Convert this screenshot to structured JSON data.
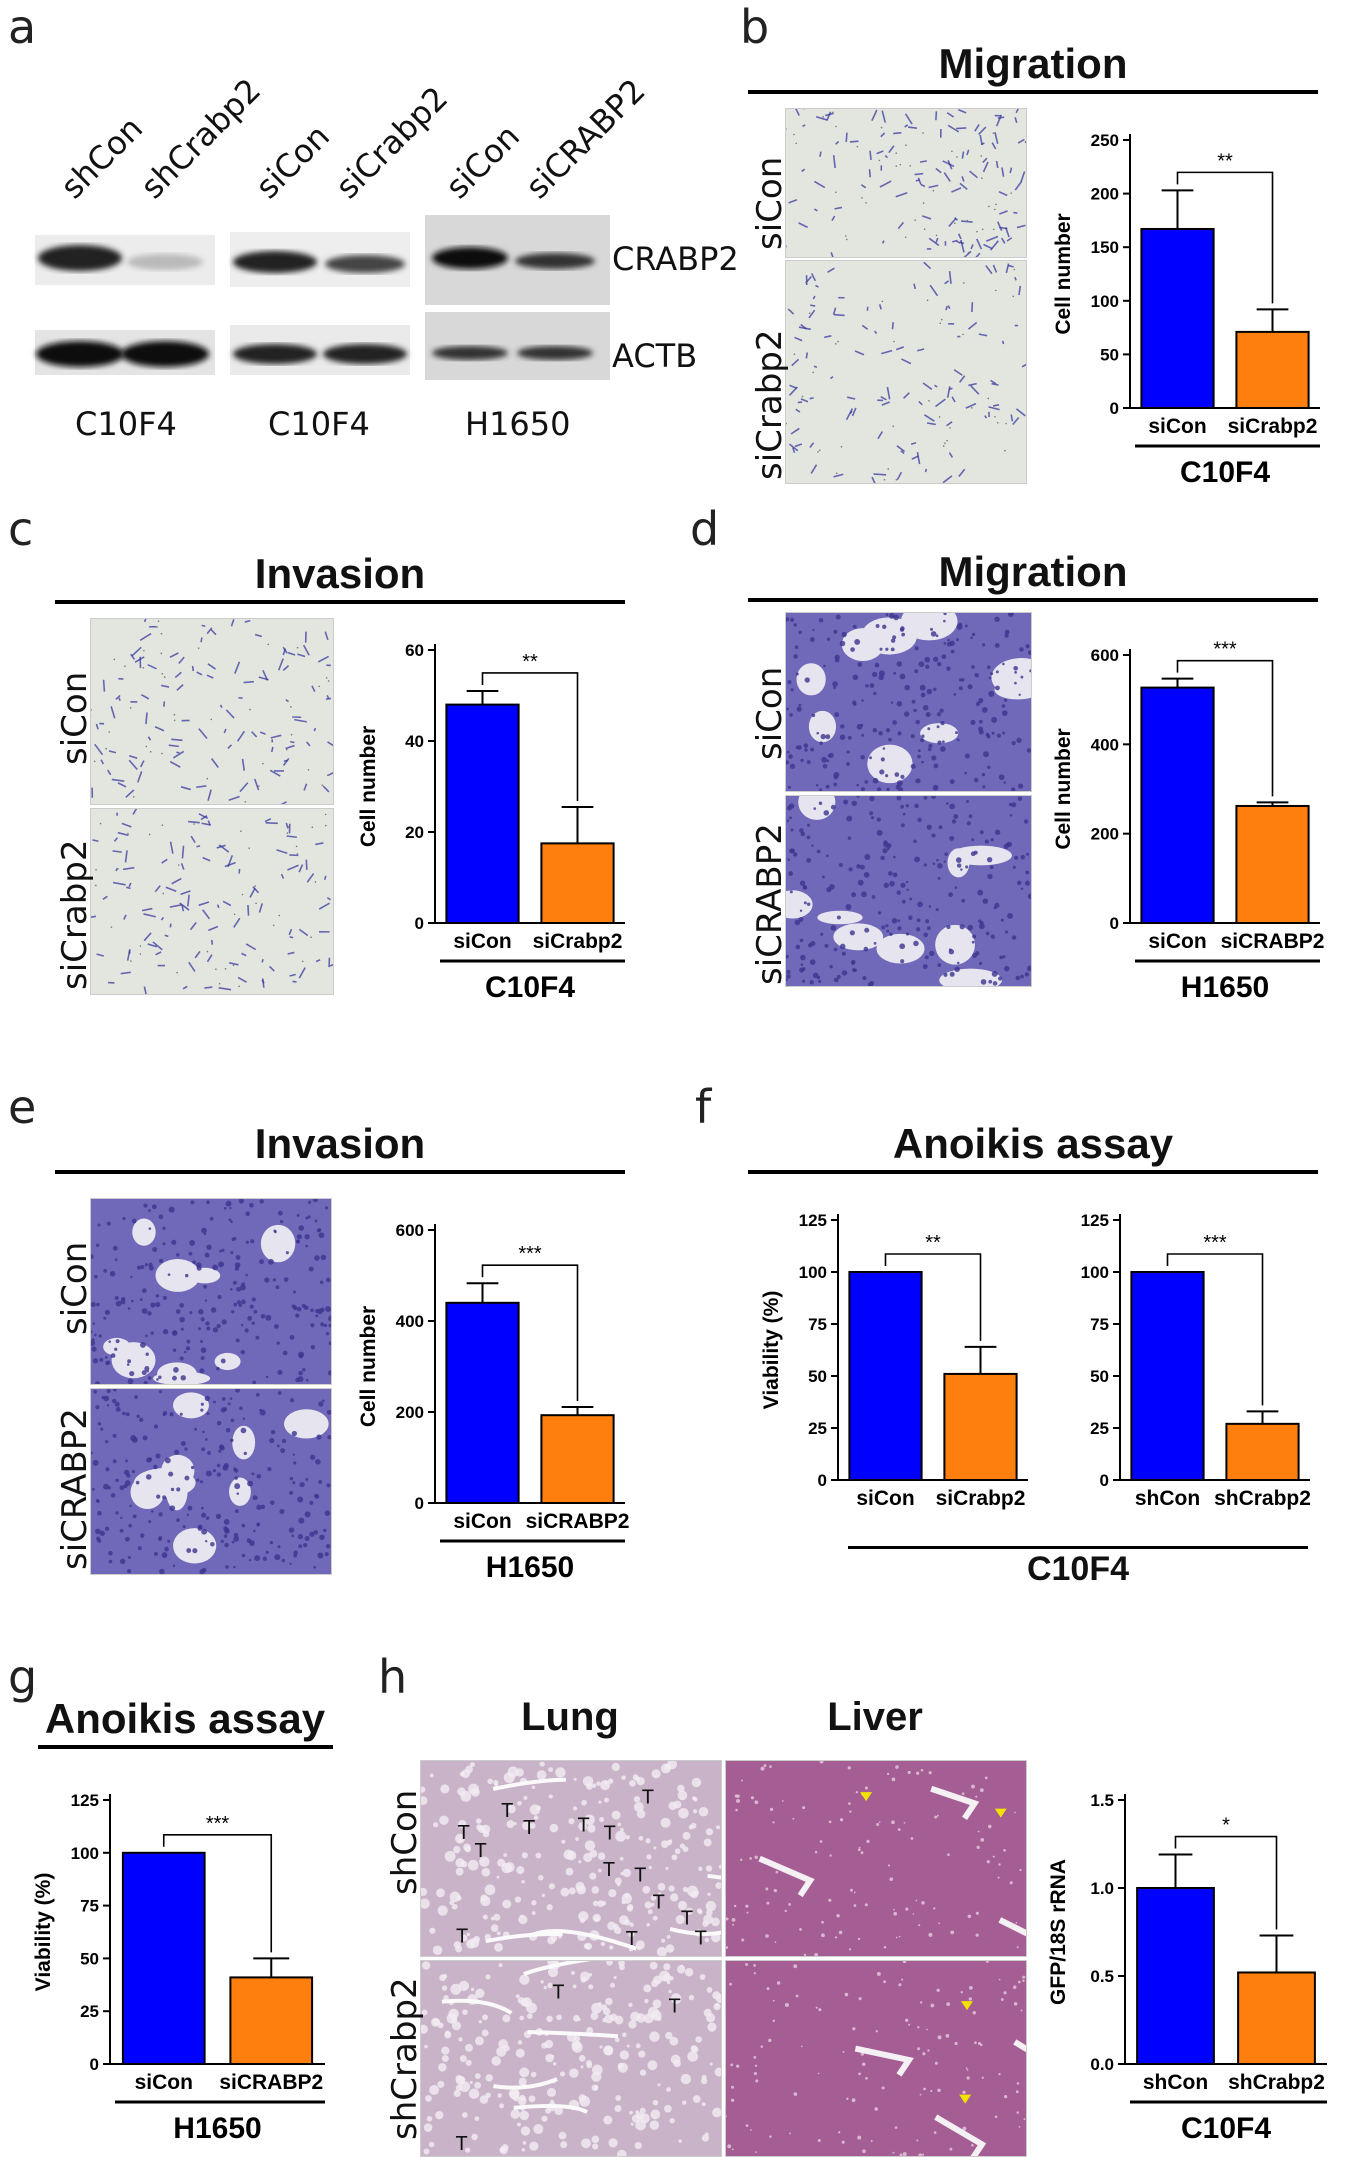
{
  "panels": {
    "a": {
      "label": "a",
      "lanes": [
        [
          "shCon",
          "shCrabp2"
        ],
        [
          "siCon",
          "siCrabp2"
        ],
        [
          "siCon",
          "siCRABP2"
        ]
      ],
      "proteins": [
        "CRABP2",
        "ACTB"
      ],
      "cell_lines": [
        "C10F4",
        "C10F4",
        "H1650"
      ]
    },
    "b": {
      "label": "b",
      "title": "Migration",
      "rows": [
        "siCon",
        "siCrabp2"
      ]
    },
    "c": {
      "label": "c",
      "title": "Invasion",
      "rows": [
        "siCon",
        "siCrabp2"
      ]
    },
    "d": {
      "label": "d",
      "title": "Migration",
      "rows": [
        "siCon",
        "siCRABP2"
      ]
    },
    "e": {
      "label": "e",
      "title": "Invasion",
      "rows": [
        "siCon",
        "siCRABP2"
      ]
    },
    "f": {
      "label": "f",
      "title": "Anoikis assay"
    },
    "g": {
      "label": "g",
      "title": "Anoikis assay"
    },
    "h": {
      "label": "h",
      "col_titles": [
        "Lung",
        "Liver"
      ],
      "rows": [
        "shCon",
        "shCrabp2"
      ],
      "tumor_marker": "T"
    }
  },
  "chart_data": [
    {
      "id": "b",
      "type": "bar",
      "categories": [
        "siCon",
        "siCrabp2"
      ],
      "values": [
        167,
        71
      ],
      "errors": [
        36,
        21
      ],
      "ylabel": "Cell number",
      "group_label": "C10F4",
      "ylim": [
        0,
        250
      ],
      "yticks": [
        0,
        50,
        100,
        150,
        200,
        250
      ],
      "significance": "**",
      "colors": [
        "#0000ff",
        "#ff7f0e"
      ]
    },
    {
      "id": "c",
      "type": "bar",
      "categories": [
        "siCon",
        "siCrabp2"
      ],
      "values": [
        48,
        17.5
      ],
      "errors": [
        3,
        8
      ],
      "ylabel": "Cell number",
      "group_label": "C10F4",
      "ylim": [
        0,
        60
      ],
      "yticks": [
        0,
        20,
        40,
        60
      ],
      "significance": "**",
      "colors": [
        "#0000ff",
        "#ff7f0e"
      ]
    },
    {
      "id": "d",
      "type": "bar",
      "categories": [
        "siCon",
        "siCRABP2"
      ],
      "values": [
        527,
        262
      ],
      "errors": [
        20,
        8
      ],
      "ylabel": "Cell number",
      "group_label": "H1650",
      "ylim": [
        0,
        600
      ],
      "yticks": [
        0,
        200,
        400,
        600
      ],
      "significance": "***",
      "colors": [
        "#0000ff",
        "#ff7f0e"
      ]
    },
    {
      "id": "e",
      "type": "bar",
      "categories": [
        "siCon",
        "siCRABP2"
      ],
      "values": [
        440,
        193
      ],
      "errors": [
        43,
        18
      ],
      "ylabel": "Cell number",
      "group_label": "H1650",
      "ylim": [
        0,
        600
      ],
      "yticks": [
        0,
        200,
        400,
        600
      ],
      "significance": "***",
      "colors": [
        "#0000ff",
        "#ff7f0e"
      ]
    },
    {
      "id": "f1",
      "type": "bar",
      "categories": [
        "siCon",
        "siCrabp2"
      ],
      "values": [
        100,
        51
      ],
      "errors": [
        0,
        13
      ],
      "ylabel": "Viability (%)",
      "group_label": "C10F4",
      "ylim": [
        0,
        125
      ],
      "yticks": [
        0,
        25,
        50,
        75,
        100,
        125
      ],
      "significance": "**",
      "colors": [
        "#0000ff",
        "#ff7f0e"
      ]
    },
    {
      "id": "f2",
      "type": "bar",
      "categories": [
        "shCon",
        "shCrabp2"
      ],
      "values": [
        100,
        27
      ],
      "errors": [
        0,
        6
      ],
      "ylabel": "",
      "group_label": "C10F4",
      "ylim": [
        0,
        125
      ],
      "yticks": [
        0,
        25,
        50,
        75,
        100,
        125
      ],
      "significance": "***",
      "colors": [
        "#0000ff",
        "#ff7f0e"
      ]
    },
    {
      "id": "g",
      "type": "bar",
      "categories": [
        "siCon",
        "siCRABP2"
      ],
      "values": [
        100,
        41
      ],
      "errors": [
        0,
        9
      ],
      "ylabel": "Viability (%)",
      "group_label": "H1650",
      "ylim": [
        0,
        125
      ],
      "yticks": [
        0,
        25,
        50,
        75,
        100,
        125
      ],
      "significance": "***",
      "colors": [
        "#0000ff",
        "#ff7f0e"
      ]
    },
    {
      "id": "h",
      "type": "bar",
      "categories": [
        "shCon",
        "shCrabp2"
      ],
      "values": [
        1.0,
        0.52
      ],
      "errors": [
        0.19,
        0.21
      ],
      "ylabel": "GFP/18S rRNA",
      "group_label": "C10F4",
      "ylim": [
        0,
        1.5
      ],
      "yticks": [
        0.0,
        0.5,
        1.0,
        1.5
      ],
      "significance": "*",
      "colors": [
        "#0000ff",
        "#ff7f0e"
      ]
    }
  ]
}
